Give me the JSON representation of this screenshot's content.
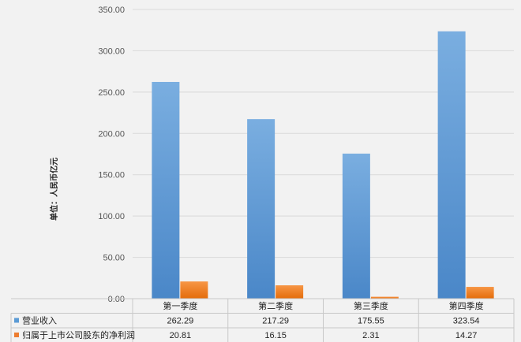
{
  "chart_data": {
    "type": "bar",
    "title": "",
    "xlabel": "",
    "ylabel": "单位：人民币亿元",
    "categories": [
      "第一季度",
      "第二季度",
      "第三季度",
      "第四季度"
    ],
    "ylim": [
      0,
      350
    ],
    "yticks": [
      "0.00",
      "50.00",
      "100.00",
      "150.00",
      "200.00",
      "250.00",
      "300.00",
      "350.00"
    ],
    "grid": true,
    "legend": "bottom data table",
    "series": [
      {
        "name": "营业收入",
        "values": [
          262.29,
          217.29,
          175.55,
          323.54
        ],
        "labels": [
          "262.29",
          "217.29",
          "175.55",
          "323.54"
        ],
        "color": "#5b9bd5"
      },
      {
        "name": "归属于上市公司股东的净利润",
        "values": [
          20.81,
          16.15,
          2.31,
          14.27
        ],
        "labels": [
          "20.81",
          "16.15",
          "2.31",
          "14.27"
        ],
        "color": "#ed7d31"
      }
    ]
  }
}
